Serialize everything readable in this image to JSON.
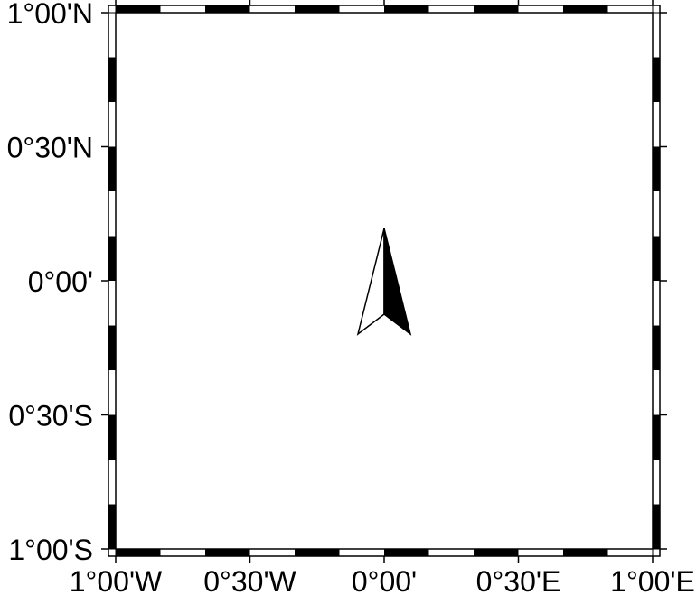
{
  "map": {
    "projection": "Cartesian lon/lat frame",
    "region": {
      "west": -1,
      "east": 1,
      "south": -1,
      "north": 1
    },
    "frame_style": "alternating black/white checker border (fancy frame)",
    "colors": {
      "frame_dark": "#000000",
      "frame_light": "#ffffff",
      "background": "#ffffff"
    },
    "x_ticks": [
      {
        "value": -1.0,
        "label": "1°00'W"
      },
      {
        "value": -0.5,
        "label": "0°30'W"
      },
      {
        "value": 0.0,
        "label": "0°00'"
      },
      {
        "value": 0.5,
        "label": "0°30'E"
      },
      {
        "value": 1.0,
        "label": "1°00'E"
      }
    ],
    "y_ticks": [
      {
        "value": 1.0,
        "label": "1°00'N"
      },
      {
        "value": 0.5,
        "label": "0°30'N"
      },
      {
        "value": 0.0,
        "label": "0°00'"
      },
      {
        "value": -0.5,
        "label": "0°30'S"
      },
      {
        "value": -1.0,
        "label": "1°00'S"
      }
    ],
    "checker_step_deg": 0.16667,
    "north_arrow": {
      "icon": "north-arrow-icon",
      "center_lon": 0.0,
      "center_lat": 0.0
    }
  }
}
